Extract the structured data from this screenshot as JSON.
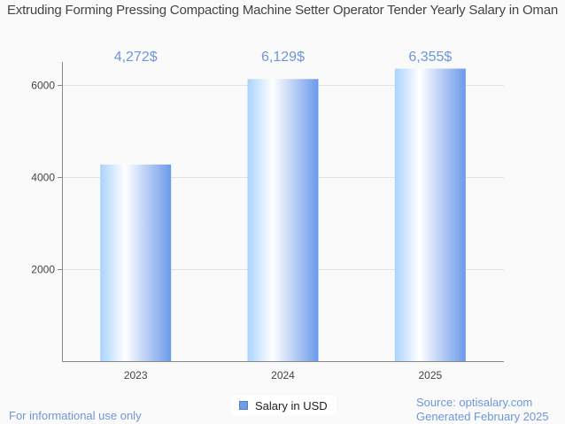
{
  "chart_data": {
    "type": "bar",
    "title": "Extruding Forming Pressing Compacting Machine Setter Operator Tender Yearly Salary in Oman",
    "categories": [
      "2023",
      "2024",
      "2025"
    ],
    "values": [
      4272,
      6129,
      6355
    ],
    "data_labels": [
      "4,272$",
      "6,129$",
      "6,355$"
    ],
    "xlabel": "",
    "ylabel": "",
    "ylim": [
      0,
      6500
    ],
    "yticks": [
      2000,
      4000,
      6000
    ],
    "grid": true,
    "legend": {
      "placement": "bottom-center",
      "entries": [
        "Salary in USD"
      ]
    },
    "colors": {
      "bar_left": "#a9d3ff",
      "bar_mid": "#ffffff",
      "bar_right": "#6b99ea",
      "label": "#6d97d8"
    }
  },
  "footer": {
    "disclaimer": "For informational use only",
    "source": "Source: optisalary.com",
    "generated": "Generated February 2025"
  }
}
